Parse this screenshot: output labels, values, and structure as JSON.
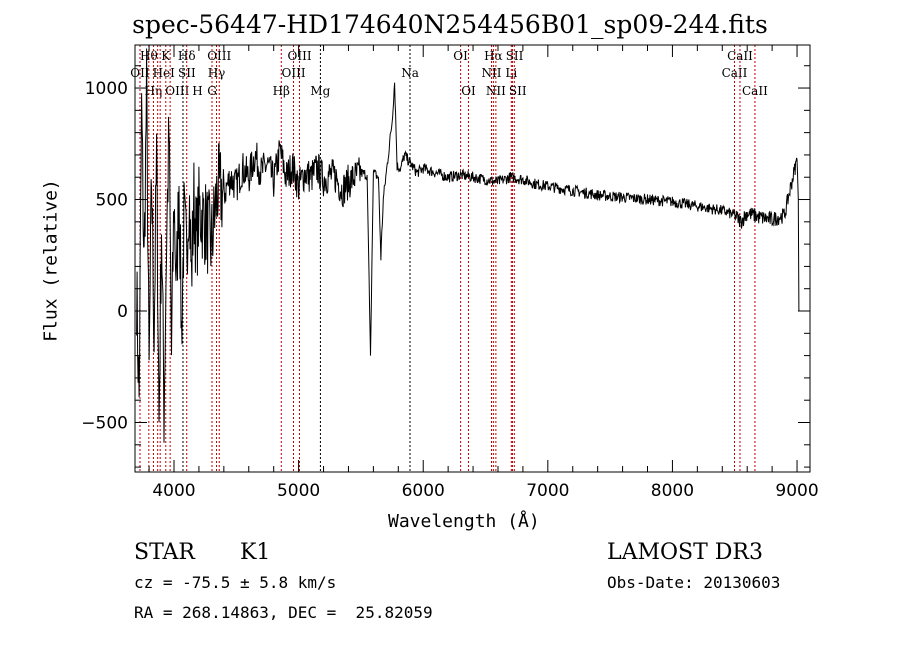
{
  "chart_data": {
    "type": "line",
    "title": "spec-56447-HD174640N254456B01_sp09-244.fits",
    "xlabel": "Wavelength (Å)",
    "ylabel": "Flux (relative)",
    "xlim": [
      3687,
      9104
    ],
    "ylim": [
      -722,
      1193
    ],
    "xticks": [
      4000,
      5000,
      6000,
      7000,
      8000,
      9000
    ],
    "yticks": [
      -500,
      0,
      500,
      1000
    ],
    "grid": false,
    "series": [
      {
        "name": "flux",
        "x": [
          3700,
          3720,
          3740,
          3760,
          3780,
          3800,
          3820,
          3840,
          3860,
          3880,
          3900,
          3920,
          3940,
          3960,
          3980,
          4000,
          4020,
          4040,
          4060,
          4080,
          4100,
          4120,
          4140,
          4160,
          4180,
          4200,
          4250,
          4300,
          4350,
          4400,
          4450,
          4500,
          4550,
          4600,
          4650,
          4700,
          4750,
          4800,
          4850,
          4900,
          4950,
          5000,
          5050,
          5100,
          5150,
          5200,
          5250,
          5300,
          5350,
          5400,
          5450,
          5500,
          5550,
          5577,
          5600,
          5640,
          5660,
          5680,
          5720,
          5750,
          5770,
          5790,
          5820,
          5850,
          5900,
          5950,
          6000,
          6100,
          6200,
          6300,
          6400,
          6500,
          6600,
          6700,
          6800,
          6900,
          7000,
          7200,
          7400,
          7600,
          7800,
          8000,
          8200,
          8400,
          8500,
          8550,
          8600,
          8700,
          8800,
          8900,
          8950,
          9000,
          9010,
          9015
        ],
        "y": [
          100,
          -400,
          900,
          200,
          1000,
          -300,
          600,
          -100,
          700,
          -500,
          400,
          -450,
          300,
          800,
          -200,
          500,
          100,
          600,
          -100,
          400,
          250,
          550,
          150,
          500,
          300,
          450,
          400,
          300,
          550,
          520,
          600,
          560,
          640,
          600,
          700,
          620,
          660,
          580,
          720,
          600,
          650,
          560,
          620,
          600,
          640,
          590,
          610,
          600,
          540,
          580,
          600,
          620,
          610,
          -200,
          620,
          600,
          240,
          500,
          700,
          850,
          1030,
          650,
          640,
          700,
          660,
          620,
          640,
          620,
          600,
          610,
          600,
          590,
          580,
          600,
          590,
          570,
          560,
          540,
          520,
          510,
          500,
          490,
          470,
          450,
          430,
          400,
          440,
          420,
          410,
          430,
          560,
          680,
          500,
          0
        ]
      }
    ],
    "lines": [
      {
        "name": "OII",
        "wl": 3727,
        "row": 2,
        "color": "#c00000"
      },
      {
        "name": "Hθ",
        "wl": 3798,
        "row": 1,
        "color": "#c00000"
      },
      {
        "name": "Hη",
        "wl": 3835,
        "row": 3,
        "color": "#c00000"
      },
      {
        "name": "OIII",
        "wl": 3869,
        "row": 3,
        "color": "#c00000"
      },
      {
        "name": "HeI",
        "wl": 3889,
        "row": 2,
        "color": "#c00000"
      },
      {
        "name": "K",
        "wl": 3934,
        "row": 1,
        "color": "#c00000"
      },
      {
        "name": "H",
        "wl": 3969,
        "row": 3,
        "color": "#c00000"
      },
      {
        "name": "SII",
        "wl": 4072,
        "row": 2,
        "color": "#000000"
      },
      {
        "name": "Hδ",
        "wl": 4102,
        "row": 1,
        "color": "#c00000"
      },
      {
        "name": "G",
        "wl": 4305,
        "row": 3,
        "color": "#c00000"
      },
      {
        "name": "Hγ",
        "wl": 4341,
        "row": 2,
        "color": "#c00000"
      },
      {
        "name": "OIII",
        "wl": 4363,
        "row": 1,
        "color": "#c00000"
      },
      {
        "name": "Hβ",
        "wl": 4861,
        "row": 3,
        "color": "#c00000"
      },
      {
        "name": "OIII",
        "wl": 4959,
        "row": 2,
        "color": "#c00000"
      },
      {
        "name": "OIII",
        "wl": 5007,
        "row": 1,
        "color": "#c00000"
      },
      {
        "name": "Mg",
        "wl": 5175,
        "row": 3,
        "color": "#000000"
      },
      {
        "name": "Na",
        "wl": 5894,
        "row": 2,
        "color": "#000000"
      },
      {
        "name": "OI",
        "wl": 6300,
        "row": 1,
        "color": "#c00000"
      },
      {
        "name": "OI",
        "wl": 6363,
        "row": 3,
        "color": "#c00000"
      },
      {
        "name": "NII",
        "wl": 6548,
        "row": 2,
        "color": "#c00000"
      },
      {
        "name": "Hα",
        "wl": 6563,
        "row": 1,
        "color": "#c00000"
      },
      {
        "name": "NII",
        "wl": 6583,
        "row": 3,
        "color": "#c00000"
      },
      {
        "name": "Li",
        "wl": 6707,
        "row": 2,
        "color": "#c00000"
      },
      {
        "name": "SII",
        "wl": 6716,
        "row": 1,
        "color": "#c00000"
      },
      {
        "name": "SII",
        "wl": 6731,
        "row": 3,
        "color": "#c00000"
      },
      {
        "name": "CaII",
        "wl": 8498,
        "row": 2,
        "color": "#c00000"
      },
      {
        "name": "CaII",
        "wl": 8542,
        "row": 1,
        "color": "#c00000"
      },
      {
        "name": "CaII",
        "wl": 8662,
        "row": 3,
        "color": "#c00000"
      }
    ]
  },
  "info": {
    "object_class": "STAR",
    "subclass": "K1",
    "cz": "cz = -75.5 ± 5.8 km/s",
    "radec": "RA = 268.14863, DEC =  25.82059",
    "survey": "LAMOST DR3",
    "obs_date": "Obs-Date: 20130603"
  }
}
